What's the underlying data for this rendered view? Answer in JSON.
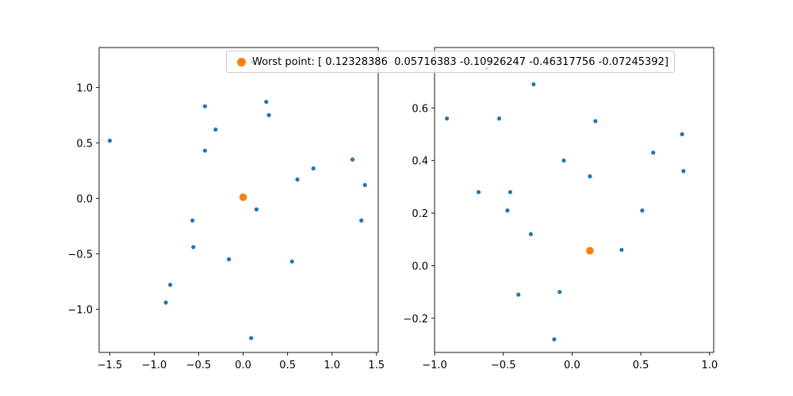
{
  "chart_data": [
    {
      "type": "scatter",
      "title": "",
      "xlabel": "",
      "ylabel": "",
      "xlim": [
        -1.62,
        1.52
      ],
      "ylim": [
        -1.39,
        1.36
      ],
      "xticks": [
        -1.5,
        -1.0,
        -0.5,
        0.0,
        0.5,
        1.0,
        1.5
      ],
      "xtick_labels": [
        "−1.5",
        "−1.0",
        "−0.5",
        "0.0",
        "0.5",
        "1.0",
        "1.5"
      ],
      "yticks": [
        -1.0,
        -0.5,
        0.0,
        0.5,
        1.0
      ],
      "ytick_labels": [
        "−1.0",
        "−0.5",
        "0.0",
        "0.5",
        "1.0"
      ],
      "grid": false,
      "series": [
        {
          "color": "#1f77b4",
          "marker": "small-dot",
          "points": [
            [
              -1.5,
              0.52
            ],
            [
              -0.43,
              0.83
            ],
            [
              -0.31,
              0.62
            ],
            [
              -0.43,
              0.43
            ],
            [
              0.26,
              0.87
            ],
            [
              0.29,
              0.75
            ],
            [
              0.1,
              1.23
            ],
            [
              1.23,
              0.35
            ],
            [
              1.37,
              0.12
            ],
            [
              0.79,
              0.27
            ],
            [
              0.61,
              0.17
            ],
            [
              0.15,
              -0.1
            ],
            [
              -0.57,
              -0.2
            ],
            [
              -0.56,
              -0.44
            ],
            [
              1.33,
              -0.2
            ],
            [
              -0.16,
              -0.55
            ],
            [
              0.55,
              -0.57
            ],
            [
              -0.82,
              -0.78
            ],
            [
              -0.87,
              -0.94
            ],
            [
              0.09,
              -1.26
            ]
          ]
        },
        {
          "name": "Worst point: [ 0.12328386  0.05716383 -0.10926247 -0.46317756 -0.07245392]",
          "color": "#ff7f0e",
          "marker": "large-dot",
          "points": [
            [
              0.0,
              0.01
            ]
          ]
        }
      ],
      "legend": {
        "position": "top-center",
        "text": "Worst point: [ 0.12328386  0.05716383 -0.10926247 -0.46317756 -0.07245392]"
      }
    },
    {
      "type": "scatter",
      "title": "",
      "xlabel": "",
      "ylabel": "",
      "xlim": [
        -1.0,
        1.03
      ],
      "ylim": [
        -0.33,
        0.83
      ],
      "xticks": [
        -1.0,
        -0.5,
        0.0,
        0.5,
        1.0
      ],
      "xtick_labels": [
        "−1.0",
        "−0.5",
        "0.0",
        "0.5",
        "1.0"
      ],
      "yticks": [
        -0.2,
        0.0,
        0.2,
        0.4,
        0.6
      ],
      "ytick_labels": [
        "−0.2",
        "0.0",
        "0.2",
        "0.4",
        "0.6"
      ],
      "grid": false,
      "series": [
        {
          "color": "#1f77b4",
          "marker": "small-dot",
          "points": [
            [
              -0.62,
              0.75
            ],
            [
              -0.28,
              0.69
            ],
            [
              -0.91,
              0.56
            ],
            [
              -0.53,
              0.56
            ],
            [
              0.17,
              0.55
            ],
            [
              0.8,
              0.5
            ],
            [
              0.59,
              0.43
            ],
            [
              -0.06,
              0.4
            ],
            [
              0.81,
              0.36
            ],
            [
              0.13,
              0.34
            ],
            [
              -0.68,
              0.28
            ],
            [
              -0.45,
              0.28
            ],
            [
              -0.47,
              0.21
            ],
            [
              0.51,
              0.21
            ],
            [
              -0.3,
              0.12
            ],
            [
              0.36,
              0.06
            ],
            [
              -0.39,
              -0.11
            ],
            [
              -0.09,
              -0.1
            ],
            [
              -0.13,
              -0.28
            ]
          ]
        },
        {
          "name": "Worst point",
          "color": "#ff7f0e",
          "marker": "large-dot",
          "points": [
            [
              0.13,
              0.057
            ]
          ]
        }
      ]
    }
  ]
}
